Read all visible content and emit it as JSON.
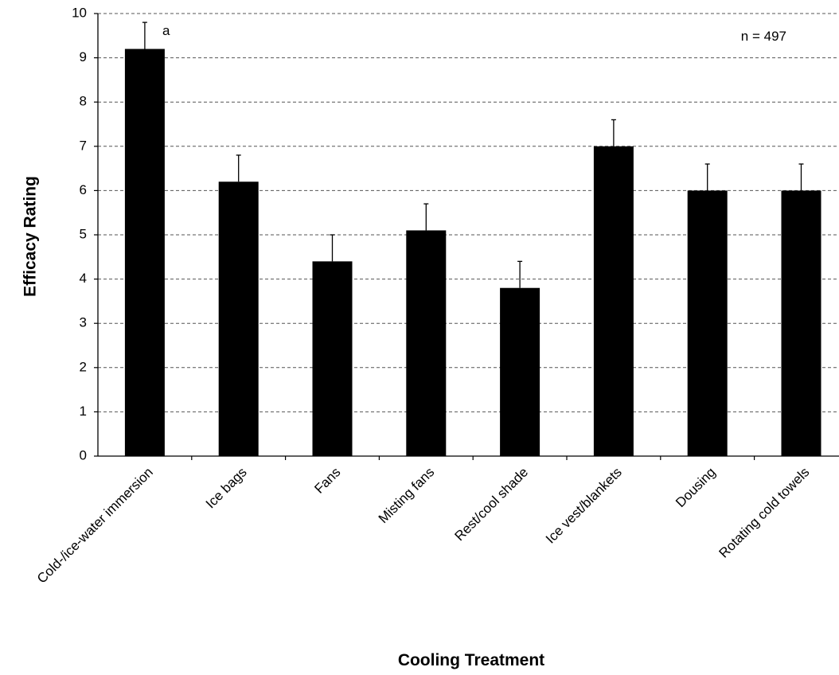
{
  "chart_data": {
    "type": "bar",
    "title": "",
    "xlabel": "Cooling Treatment",
    "ylabel": "Efficacy Rating",
    "categories": [
      "Cold-/ice-water immersion",
      "Ice bags",
      "Fans",
      "Misting fans",
      "Rest/cool shade",
      "Ice vest/blankets",
      "Dousing",
      "Rotating cold towels"
    ],
    "values": [
      9.2,
      6.2,
      4.4,
      5.1,
      3.8,
      7.0,
      6.0,
      6.0
    ],
    "error_upper": [
      0.6,
      0.6,
      0.6,
      0.6,
      0.6,
      0.6,
      0.6,
      0.6
    ],
    "ylim": [
      0,
      10
    ],
    "yticks": [
      "0",
      "1",
      "2",
      "3",
      "4",
      "5",
      "6",
      "7",
      "8",
      "9",
      "10"
    ],
    "grid": "horizontal dashed",
    "bar_color": "#000000",
    "annotations": {
      "significance": "a",
      "sample_size": "n = 497"
    }
  }
}
